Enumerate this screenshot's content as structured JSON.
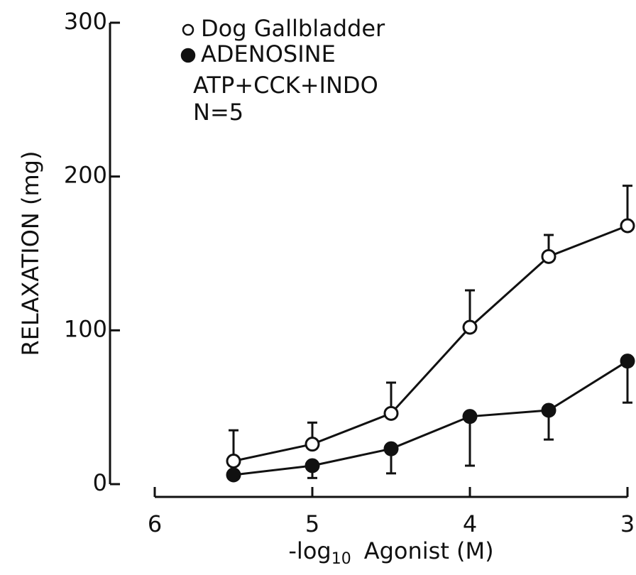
{
  "chart_data": {
    "type": "line",
    "ylabel": "RELAXATION (mg)",
    "xlabel_parts": [
      "-log",
      "10",
      "Agonist (M)"
    ],
    "annotations": [
      "ATP+CCK+INDO",
      "N=5"
    ],
    "x": [
      5.5,
      5,
      4.5,
      4,
      3.5,
      3
    ],
    "series": [
      {
        "name": "Dog Gallbladder",
        "marker": "open",
        "color": "#111111",
        "error_direction": "up",
        "values": [
          15,
          26,
          46,
          102,
          148,
          168
        ],
        "errors": [
          20,
          14,
          20,
          24,
          14,
          26
        ]
      },
      {
        "name": "ADENOSINE",
        "marker": "filled",
        "color": "#111111",
        "error_direction": "down",
        "values": [
          6,
          12,
          23,
          44,
          48,
          80
        ],
        "errors": [
          null,
          8,
          16,
          32,
          19,
          27
        ]
      }
    ],
    "xlim": [
      6,
      3
    ],
    "xticks": [
      6,
      5,
      4,
      3
    ],
    "ylim": [
      0,
      300
    ],
    "yticks": [
      0,
      100,
      200,
      300
    ]
  }
}
